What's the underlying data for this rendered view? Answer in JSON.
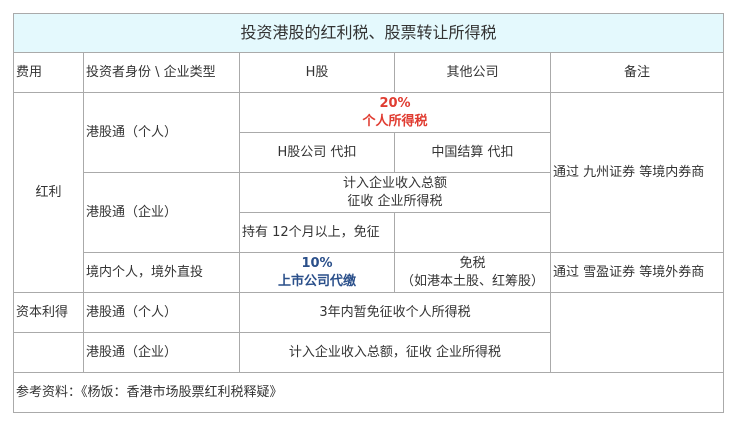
{
  "title": "投资港股的红利税、股票转让所得税",
  "header": [
    "费用",
    "投资者身份 \\ 企业类型",
    "H股",
    "其他公司",
    "备注"
  ],
  "dividend": {
    "label": "红利",
    "hk_connect_individual": {
      "label": "港股通（个人）",
      "rate": "20%",
      "tax": "个人所得税",
      "h_share": "H股公司 代扣",
      "other": "中国结算 代扣"
    },
    "hk_connect_corporate": {
      "label": "港股通（企业）",
      "line1": "计入企业收入总额",
      "line2": "征收 企业所得税",
      "h_share": "持有 12个月以上，免征",
      "other": ""
    },
    "remark_connect": "通过 九州证券 等境内券商",
    "domestic_individual": {
      "label": "境内个人，境外直投",
      "rate": "10%",
      "withholding": "上市公司代缴",
      "other_line1": "免税",
      "other_line2": "（如港本土股、红筹股）"
    },
    "remark_direct": "通过 雪盈证券 等境外券商"
  },
  "capital_gains": {
    "label": "资本利得",
    "individual": {
      "label": "港股通（个人）",
      "value": "3年内暂免征收个人所得税"
    },
    "corporate": {
      "label": "港股通（企业）",
      "value": "计入企业收入总额，征收 企业所得税"
    }
  },
  "reference": "参考资料：《杨饭：香港市场股票红利税释疑》",
  "colors": {
    "title_bg": "#e4f9fd",
    "red": "#e03c31",
    "blue": "#2a4f8a",
    "border": "#aaaaaa"
  }
}
